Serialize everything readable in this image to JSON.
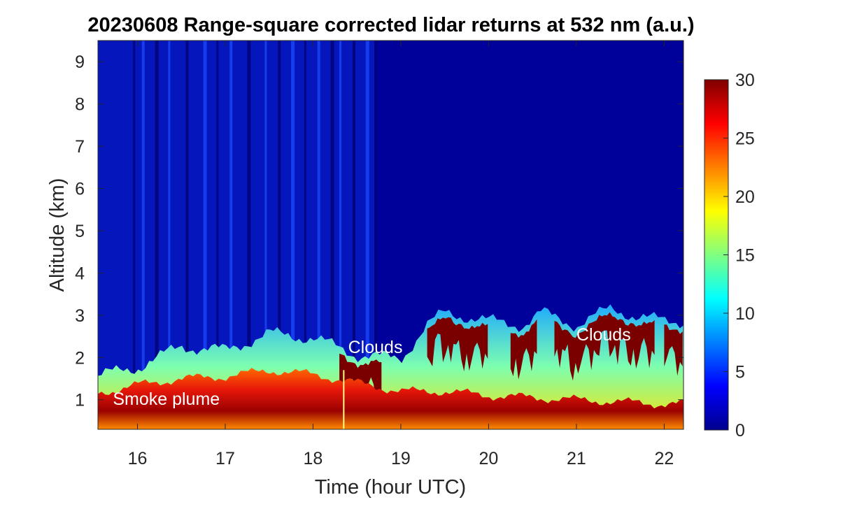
{
  "chart_data": {
    "type": "heatmap",
    "title": "20230608  Range-square corrected lidar returns at 532 nm (a.u.)",
    "xlabel": "Time (hour UTC)",
    "ylabel": "Altitude (km)",
    "xlim": [
      15.55,
      22.22
    ],
    "ylim": [
      0.3,
      9.5
    ],
    "x_ticks": [
      16,
      17,
      18,
      19,
      20,
      21,
      22
    ],
    "y_ticks": [
      1,
      2,
      3,
      4,
      5,
      6,
      7,
      8,
      9
    ],
    "colorbar": {
      "range": [
        0,
        30
      ],
      "ticks": [
        0,
        5,
        10,
        15,
        20,
        25,
        30
      ],
      "colormap": "jet"
    },
    "annotations": [
      {
        "text": "Smoke plume",
        "x": 15.72,
        "y": 0.88
      },
      {
        "text": "Clouds",
        "x": 18.4,
        "y": 2.1
      },
      {
        "text": "Clouds",
        "x": 21.0,
        "y": 2.4
      }
    ],
    "cloud_top_profile": {
      "description": "approximate top of high-backscatter layer (km)",
      "time": [
        15.55,
        16.0,
        16.5,
        17.0,
        17.5,
        18.0,
        18.5,
        19.0,
        19.3,
        19.5,
        20.0,
        20.4,
        20.6,
        21.0,
        21.4,
        21.7,
        22.0,
        22.22
      ],
      "height": [
        1.4,
        1.6,
        2.1,
        2.0,
        2.4,
        2.3,
        1.9,
        1.8,
        2.6,
        2.9,
        2.7,
        2.6,
        2.9,
        2.6,
        3.0,
        2.8,
        2.7,
        2.7
      ]
    },
    "smoke_top_profile": {
      "description": "approximate top of saturated smoke layer (km)",
      "time": [
        15.55,
        16.0,
        16.5,
        17.0,
        17.5,
        18.0,
        18.5,
        19.0,
        19.5,
        20.0,
        20.5,
        21.0,
        21.5,
        22.0,
        22.22
      ],
      "height": [
        1.15,
        1.35,
        1.5,
        1.55,
        1.7,
        1.6,
        1.4,
        1.2,
        1.2,
        1.1,
        1.05,
        1.0,
        0.95,
        0.9,
        0.9
      ]
    }
  }
}
